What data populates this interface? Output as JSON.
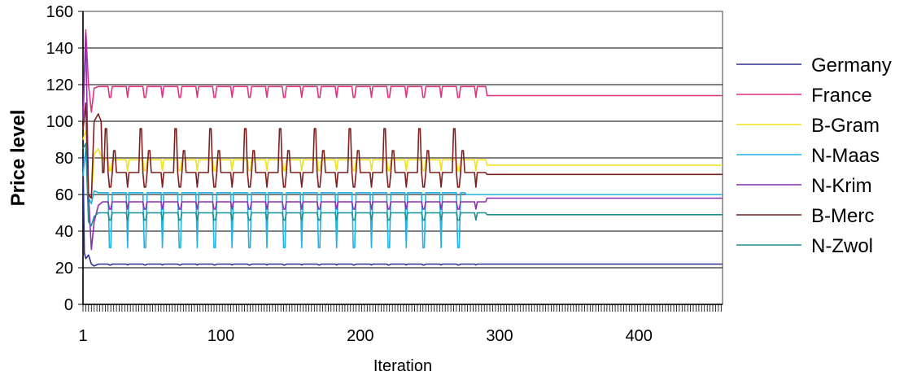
{
  "chart_data": {
    "type": "line",
    "title": "",
    "xlabel": "Iteration",
    "ylabel": "Price level",
    "xlim": [
      1,
      460
    ],
    "ylim": [
      0,
      160
    ],
    "x_ticks": [
      1,
      100,
      200,
      300,
      400
    ],
    "y_ticks": [
      0,
      20,
      40,
      60,
      80,
      100,
      120,
      140,
      160
    ],
    "grid": "horizontal",
    "legend_position": "right",
    "background": "#ffffff",
    "series": [
      {
        "name": "Germany",
        "color": "#2b2f8f",
        "start": [
          [
            1,
            80
          ],
          [
            2,
            28
          ],
          [
            3,
            25
          ],
          [
            5,
            27
          ],
          [
            7,
            22
          ],
          [
            9,
            21
          ],
          [
            12,
            22
          ]
        ],
        "cycle": {
          "from": 15,
          "to": 290,
          "period": 25,
          "base": 22,
          "dip": 21.5,
          "spike": 0,
          "spike2": 0
        },
        "end": 22
      },
      {
        "name": "France",
        "color": "#e0317e",
        "start": [
          [
            1,
            100
          ],
          [
            3,
            150
          ],
          [
            5,
            120
          ],
          [
            7,
            105
          ],
          [
            9,
            118
          ],
          [
            12,
            119
          ]
        ],
        "cycle": {
          "from": 15,
          "to": 290,
          "period": 25,
          "base": 119,
          "dip": 113,
          "spike": 0,
          "spike2": 0
        },
        "end": 114
      },
      {
        "name": "B-Gram",
        "color": "#f0e21a",
        "start": [
          [
            1,
            90
          ],
          [
            3,
            95
          ],
          [
            5,
            60
          ],
          [
            7,
            58
          ],
          [
            9,
            82
          ],
          [
            12,
            85
          ]
        ],
        "cycle": {
          "from": 15,
          "to": 290,
          "period": 25,
          "base": 79,
          "dip": 73,
          "spike": 0,
          "spike2": 0
        },
        "end": 76
      },
      {
        "name": "N-Maas",
        "color": "#1fb3e6",
        "start": [
          [
            1,
            70
          ],
          [
            3,
            85
          ],
          [
            5,
            58
          ],
          [
            7,
            55
          ],
          [
            9,
            62
          ],
          [
            12,
            61
          ]
        ],
        "cycle": {
          "from": 15,
          "to": 275,
          "period": 25,
          "base": 61,
          "dip": 31,
          "spike": 0,
          "spike2": 0
        },
        "end": 60
      },
      {
        "name": "N-Krim",
        "color": "#8b2fb3",
        "start": [
          [
            1,
            100
          ],
          [
            3,
            148
          ],
          [
            5,
            60
          ],
          [
            7,
            30
          ],
          [
            9,
            45
          ],
          [
            12,
            54
          ]
        ],
        "cycle": {
          "from": 15,
          "to": 290,
          "period": 25,
          "base": 56,
          "dip": 52,
          "spike": 0,
          "spike2": 0
        },
        "end": 58
      },
      {
        "name": "B-Merc",
        "color": "#7d1f1f",
        "start": [
          [
            1,
            95
          ],
          [
            3,
            110
          ],
          [
            5,
            60
          ],
          [
            7,
            58
          ],
          [
            9,
            100
          ],
          [
            12,
            104
          ],
          [
            14,
            100
          ]
        ],
        "cycle": {
          "from": 15,
          "to": 290,
          "period": 25,
          "base": 72,
          "dip": 64,
          "spike": 96,
          "spike2": 84
        },
        "end": 71
      },
      {
        "name": "N-Zwol",
        "color": "#1b8f8f",
        "start": [
          [
            1,
            85
          ],
          [
            3,
            88
          ],
          [
            5,
            45
          ],
          [
            7,
            43
          ],
          [
            9,
            48
          ],
          [
            12,
            50
          ]
        ],
        "cycle": {
          "from": 15,
          "to": 290,
          "period": 25,
          "base": 50,
          "dip": 46,
          "spike": 0,
          "spike2": 0
        },
        "end": 49
      }
    ]
  }
}
